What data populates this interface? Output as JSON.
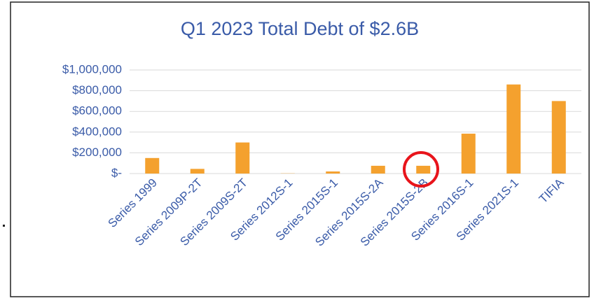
{
  "chart_data": {
    "type": "bar",
    "title": "Q1 2023 Total Debt of $2.6B",
    "categories": [
      "Series 1999",
      "Series 2009P-2T",
      "Series 2009S-2T",
      "Series 2012S-1",
      "Series 2015S-1",
      "Series 2015S-2A",
      "Series 2015S-2B",
      "Series 2016S-1",
      "Series 2021S-1",
      "TIFIA"
    ],
    "values": [
      150000,
      45000,
      300000,
      2000,
      20000,
      75000,
      75000,
      385000,
      860000,
      700000
    ],
    "color": "#f4a12e",
    "ylim": [
      0,
      1000000
    ],
    "yticks": [
      {
        "value": 0,
        "label": "$-"
      },
      {
        "value": 200000,
        "label": "$200,000"
      },
      {
        "value": 400000,
        "label": "$400,000"
      },
      {
        "value": 600000,
        "label": "$600,000"
      },
      {
        "value": 800000,
        "label": "$800,000"
      },
      {
        "value": 1000000,
        "label": "$1,000,000"
      }
    ],
    "grid": true
  }
}
